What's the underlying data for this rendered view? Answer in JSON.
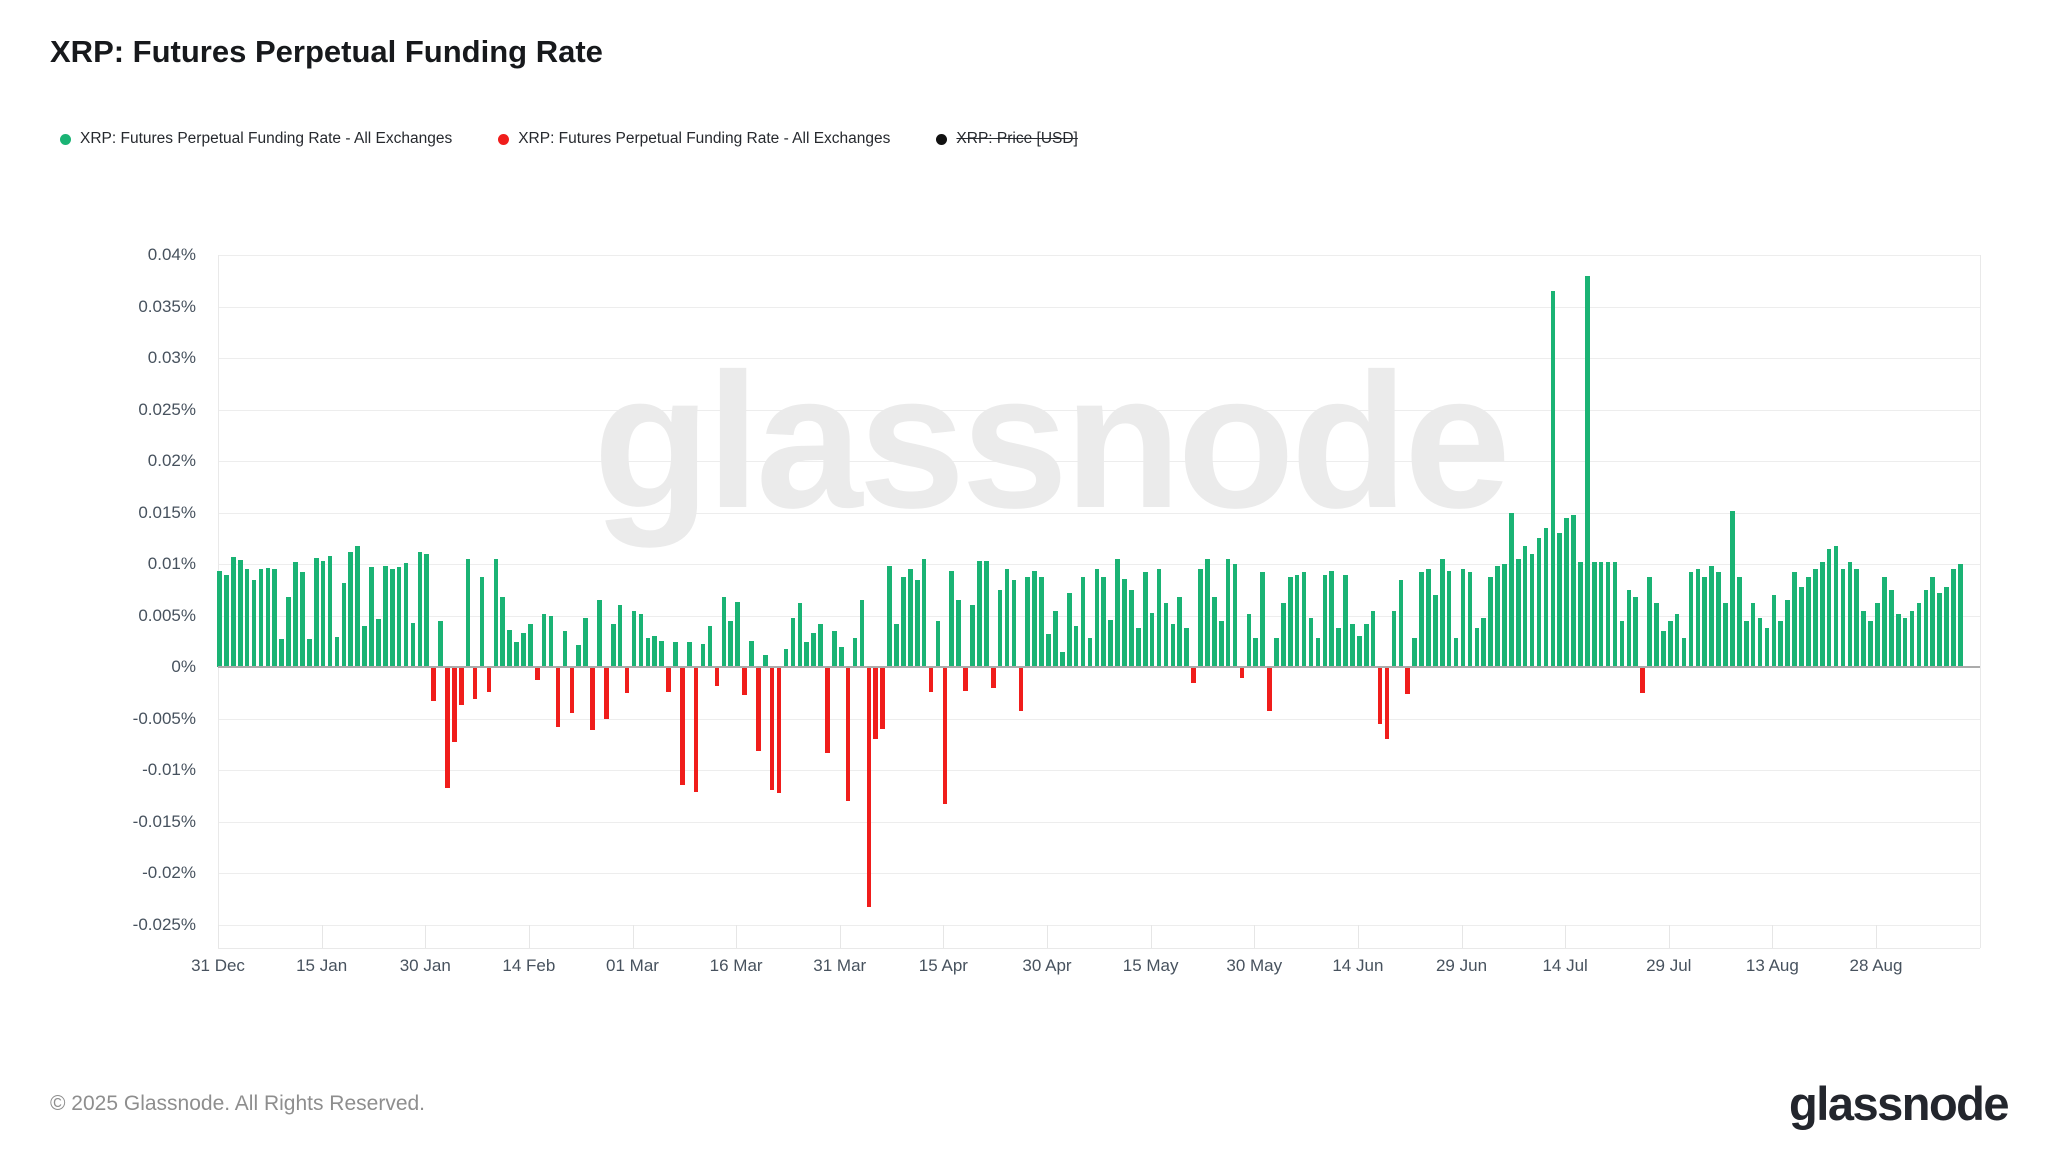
{
  "header": {
    "title": "XRP: Futures Perpetual Funding Rate"
  },
  "legend": {
    "items": [
      {
        "label": "XRP: Futures Perpetual Funding Rate - All Exchanges",
        "color": "#1ab374",
        "strikethrough": false
      },
      {
        "label": "XRP: Futures Perpetual Funding Rate - All Exchanges",
        "color": "#f01d1b",
        "strikethrough": false
      },
      {
        "label": "XRP: Price [USD]",
        "color": "#111111",
        "strikethrough": true
      }
    ]
  },
  "watermark": {
    "text": "glassnode"
  },
  "footer": {
    "copyright": "© 2025 Glassnode. All Rights Reserved.",
    "brand": "glassnode"
  },
  "chart_data": {
    "type": "bar",
    "title": "XRP: Futures Perpetual Funding Rate",
    "series_name": "XRP: Futures Perpetual Funding Rate - All Exchanges",
    "unit": "%",
    "interval": "1 day",
    "start_date": "31 Dec",
    "end_date": "09 Sep",
    "grid": true,
    "legend_position": "top",
    "positive_color": "#1ab374",
    "negative_color": "#f01d1b",
    "ylim": [
      -0.025,
      0.04
    ],
    "ytick_step": 0.005,
    "yticks": [
      {
        "v": 0.04,
        "label": "0.04%"
      },
      {
        "v": 0.035,
        "label": "0.035%"
      },
      {
        "v": 0.03,
        "label": "0.03%"
      },
      {
        "v": 0.025,
        "label": "0.025%"
      },
      {
        "v": 0.02,
        "label": "0.02%"
      },
      {
        "v": 0.015,
        "label": "0.015%"
      },
      {
        "v": 0.01,
        "label": "0.01%"
      },
      {
        "v": 0.005,
        "label": "0.005%"
      },
      {
        "v": 0,
        "label": "0%"
      },
      {
        "v": -0.005,
        "label": "-0.005%"
      },
      {
        "v": -0.01,
        "label": "-0.01%"
      },
      {
        "v": -0.015,
        "label": "-0.015%"
      },
      {
        "v": -0.02,
        "label": "-0.02%"
      },
      {
        "v": -0.025,
        "label": "-0.025%"
      }
    ],
    "xticks": [
      {
        "day": 0,
        "label": "31 Dec"
      },
      {
        "day": 15,
        "label": "15 Jan"
      },
      {
        "day": 30,
        "label": "30 Jan"
      },
      {
        "day": 45,
        "label": "14 Feb"
      },
      {
        "day": 60,
        "label": "01 Mar"
      },
      {
        "day": 75,
        "label": "16 Mar"
      },
      {
        "day": 90,
        "label": "31 Mar"
      },
      {
        "day": 105,
        "label": "15 Apr"
      },
      {
        "day": 120,
        "label": "30 Apr"
      },
      {
        "day": 135,
        "label": "15 May"
      },
      {
        "day": 150,
        "label": "30 May"
      },
      {
        "day": 165,
        "label": "14 Jun"
      },
      {
        "day": 180,
        "label": "29 Jun"
      },
      {
        "day": 195,
        "label": "14 Jul"
      },
      {
        "day": 210,
        "label": "29 Jul"
      },
      {
        "day": 225,
        "label": "13 Aug"
      },
      {
        "day": 240,
        "label": "28 Aug"
      }
    ],
    "values": [
      0.0093,
      0.009,
      0.0107,
      0.0104,
      0.0095,
      0.0085,
      0.0095,
      0.0096,
      0.0095,
      0.0027,
      0.0068,
      0.0102,
      0.0092,
      0.0027,
      0.0106,
      0.0103,
      0.0108,
      0.0029,
      0.0082,
      0.0112,
      0.0118,
      0.004,
      0.0097,
      0.0047,
      0.0098,
      0.0095,
      0.0097,
      0.0101,
      0.0043,
      0.0112,
      0.011,
      -0.0033,
      0.0045,
      -0.0117,
      -0.0072,
      -0.0037,
      0.0105,
      -0.0031,
      0.0088,
      -0.0024,
      0.0105,
      0.0068,
      0.0036,
      0.0025,
      0.0033,
      0.0042,
      -0.0012,
      0.0052,
      0.005,
      -0.0058,
      0.0035,
      -0.0044,
      0.0022,
      0.0048,
      -0.0061,
      0.0065,
      -0.005,
      0.0042,
      0.006,
      -0.0025,
      0.0055,
      0.0052,
      0.0028,
      0.003,
      0.0026,
      -0.0024,
      0.0025,
      -0.0114,
      0.0025,
      -0.0121,
      0.0023,
      0.004,
      -0.0018,
      0.0068,
      0.0045,
      0.0063,
      -0.0027,
      0.0026,
      -0.0081,
      0.0012,
      -0.0119,
      -0.0122,
      0.0018,
      0.0048,
      0.0062,
      0.0025,
      0.0033,
      0.0042,
      -0.0083,
      0.0035,
      0.002,
      -0.013,
      0.0028,
      0.0065,
      -0.0233,
      -0.007,
      -0.006,
      0.0098,
      0.0042,
      0.0088,
      0.0095,
      0.0085,
      0.0105,
      -0.0024,
      0.0045,
      -0.0133,
      0.0093,
      0.0065,
      -0.0023,
      0.006,
      0.0103,
      0.0103,
      -0.002,
      0.0075,
      0.0095,
      0.0085,
      -0.0042,
      0.0088,
      0.0093,
      0.0088,
      0.0032,
      0.0055,
      0.0015,
      0.0072,
      0.004,
      0.0088,
      0.0028,
      0.0095,
      0.0088,
      0.0046,
      0.0105,
      0.0086,
      0.0075,
      0.0038,
      0.0092,
      0.0053,
      0.0095,
      0.0062,
      0.0042,
      0.0068,
      0.0038,
      -0.0015,
      0.0095,
      0.0105,
      0.0068,
      0.0045,
      0.0105,
      0.01,
      -0.001,
      0.0052,
      0.0028,
      0.0092,
      -0.0042,
      0.0028,
      0.0062,
      0.0088,
      0.009,
      0.0092,
      0.0048,
      0.0028,
      0.009,
      0.0093,
      0.0038,
      0.009,
      0.0042,
      0.003,
      0.0042,
      0.0055,
      -0.0055,
      -0.007,
      0.0055,
      0.0085,
      -0.0026,
      0.0028,
      0.0092,
      0.0095,
      0.007,
      0.0105,
      0.0093,
      0.0028,
      0.0095,
      0.0092,
      0.0038,
      0.0048,
      0.0088,
      0.0098,
      0.01,
      0.015,
      0.0105,
      0.0118,
      0.011,
      0.0125,
      0.0135,
      0.0365,
      0.013,
      0.0145,
      0.0148,
      0.0102,
      0.038,
      0.0102,
      0.0102,
      0.0102,
      0.0102,
      0.0045,
      0.0075,
      0.0068,
      -0.0025,
      0.0088,
      0.0062,
      0.0035,
      0.0045,
      0.0052,
      0.0028,
      0.0092,
      0.0095,
      0.0088,
      0.0098,
      0.0092,
      0.0062,
      0.0152,
      0.0088,
      0.0045,
      0.0062,
      0.0048,
      0.0038,
      0.007,
      0.0045,
      0.0065,
      0.0092,
      0.0078,
      0.0088,
      0.0095,
      0.0102,
      0.0115,
      0.0118,
      0.0095,
      0.0102,
      0.0095,
      0.0055,
      0.0045,
      0.0062,
      0.0088,
      0.0075,
      0.0052,
      0.0048,
      0.0055,
      0.0062,
      0.0075,
      0.0088,
      0.0072,
      0.0078,
      0.0095,
      0.01
    ]
  }
}
